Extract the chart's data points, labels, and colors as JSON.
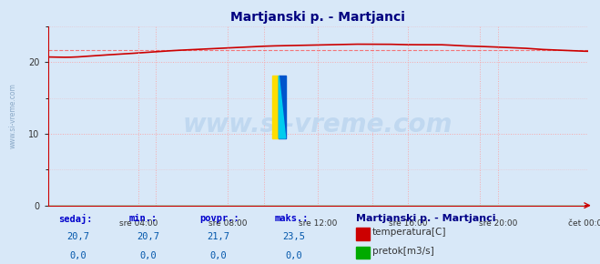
{
  "title": "Martjanski p. - Martjanci",
  "bg_color": "#d8e8f8",
  "plot_bg_color": "#d8e8f8",
  "grid_color": "#ff9999",
  "grid_style": ":",
  "ylim": [
    0,
    25
  ],
  "yticks": [
    0,
    10,
    20
  ],
  "x_labels": [
    "sre 04:00",
    "sre 08:00",
    "sre 12:00",
    "sre 16:00",
    "sre 20:00",
    "čet 00:00"
  ],
  "x_positions": [
    0.167,
    0.333,
    0.5,
    0.667,
    0.833,
    1.0
  ],
  "temp_color": "#cc0000",
  "flow_color": "#00aa00",
  "avg_line_color": "#ff4444",
  "watermark_text": "www.si-vreme.com",
  "watermark_color": "#c0d8f0",
  "sidebar_text": "www.si-vreme.com",
  "sidebar_color": "#7799bb",
  "footer_label_color": "#0000cc",
  "footer_value_color": "#0055aa",
  "footer_text_color": "#0000aa",
  "sedaj": "20,7",
  "min": "20,7",
  "povpr": "21,7",
  "maks": "23,5",
  "station_name": "Martjanski p. - Martjanci",
  "legend_temp": "temperatura[C]",
  "legend_flow": "pretok[m3/s]",
  "sedaj_flow": "0,0",
  "min_flow": "0,0",
  "povpr_flow": "0,0",
  "maks_flow": "0,0",
  "avg_temp": 21.7
}
